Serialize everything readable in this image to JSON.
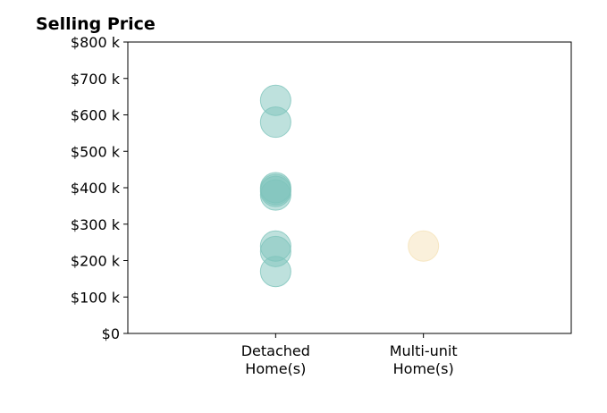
{
  "chart_data": {
    "type": "scatter",
    "title": "Selling Price",
    "xlabel": "",
    "ylabel": "",
    "categories": [
      "Detached\nHome(s)",
      "Multi-unit\nHome(s)"
    ],
    "xlim": [
      -1,
      2
    ],
    "ylim": [
      0,
      800000
    ],
    "yticks": [
      {
        "value": 0,
        "label": "$0"
      },
      {
        "value": 100000,
        "label": "$100 k"
      },
      {
        "value": 200000,
        "label": "$200 k"
      },
      {
        "value": 300000,
        "label": "$300 k"
      },
      {
        "value": 400000,
        "label": "$400 k"
      },
      {
        "value": 500000,
        "label": "$500 k"
      },
      {
        "value": 600000,
        "label": "$600 k"
      },
      {
        "value": 700000,
        "label": "$700 k"
      },
      {
        "value": 800000,
        "label": "$800 k"
      }
    ],
    "grid": false,
    "series": [
      {
        "category": "Detached\nHome(s)",
        "color": "#7ec4bb",
        "values": [
          640000,
          580000,
          400000,
          395000,
          390000,
          380000,
          240000,
          225000,
          170000
        ]
      },
      {
        "category": "Multi-unit\nHome(s)",
        "color": "#f5e2b8",
        "values": [
          240000
        ]
      }
    ]
  }
}
